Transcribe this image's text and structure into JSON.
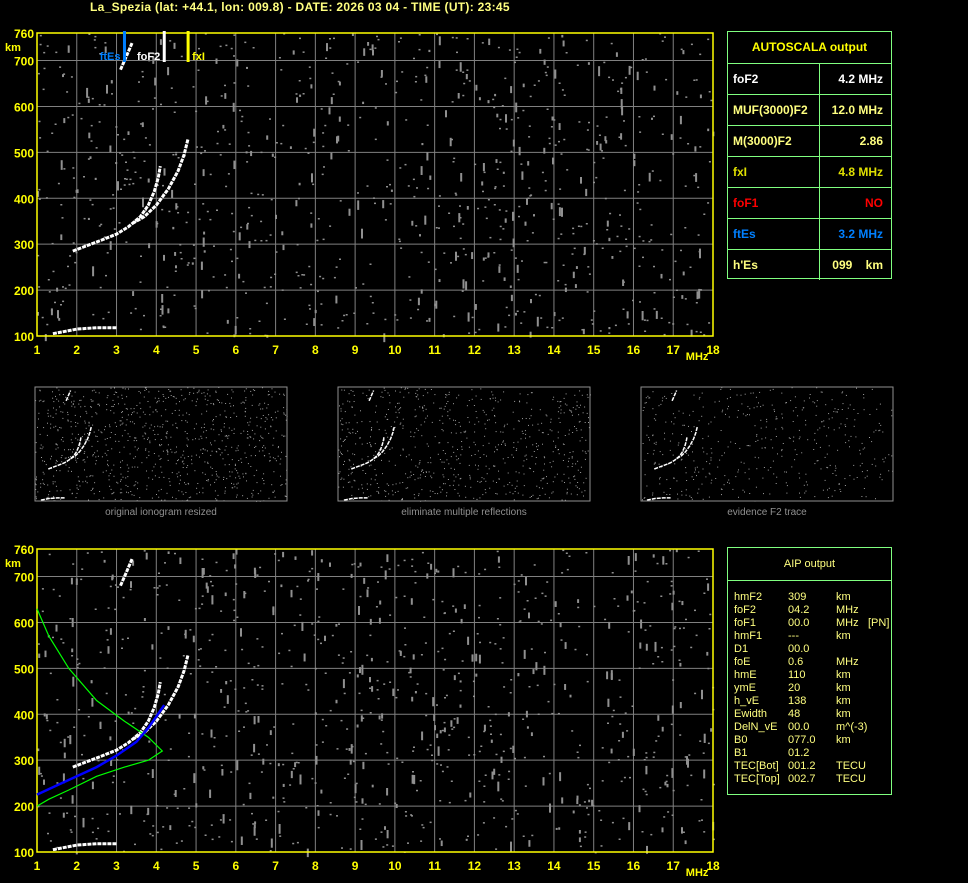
{
  "title": "La_Spezia (lat: +44.1, lon: 009.8) - DATE: 2026 03 04 - TIME (UT): 23:45",
  "colors": {
    "axis": "#ffff00",
    "grid": "#808080",
    "ftEs": "#0080ff",
    "fxI": "#ffff00",
    "foF1": "#ff0000",
    "panel_border": "#80ff80",
    "profile": "#00ff00",
    "true_height": "#0000ff"
  },
  "chart_data": [
    {
      "type": "scatter",
      "name": "ionogram",
      "xlabel": "MHz",
      "ylabel": "km",
      "xlim": [
        1,
        18
      ],
      "ylim": [
        100,
        760
      ],
      "xticks": [
        "1",
        "2",
        "3",
        "4",
        "5",
        "6",
        "7",
        "8",
        "9",
        "10",
        "11",
        "12",
        "13",
        "14",
        "15",
        "16",
        "17",
        "18"
      ],
      "yticks": [
        "100",
        "200",
        "300",
        "400",
        "500",
        "600",
        "700",
        "760"
      ],
      "grid": true,
      "markers": [
        {
          "label": "ftEs",
          "x": 3.2,
          "color": "#0080ff"
        },
        {
          "label": "foF2",
          "x": 4.2,
          "color": "#ffffff"
        },
        {
          "label": "fxI",
          "x": 4.8,
          "color": "#ffff00"
        }
      ],
      "o_trace": [
        [
          1.9,
          285
        ],
        [
          2.2,
          295
        ],
        [
          2.6,
          308
        ],
        [
          3.0,
          322
        ],
        [
          3.3,
          338
        ],
        [
          3.6,
          360
        ],
        [
          3.8,
          385
        ],
        [
          3.95,
          415
        ],
        [
          4.05,
          445
        ],
        [
          4.1,
          470
        ]
      ],
      "x_trace": [
        [
          3.4,
          345
        ],
        [
          3.7,
          360
        ],
        [
          4.0,
          385
        ],
        [
          4.3,
          420
        ],
        [
          4.55,
          460
        ],
        [
          4.7,
          495
        ],
        [
          4.8,
          530
        ]
      ],
      "second_hop": [
        [
          3.1,
          680
        ],
        [
          3.25,
          710
        ],
        [
          3.4,
          740
        ]
      ],
      "es_trace": [
        [
          1.4,
          105
        ],
        [
          2.0,
          115
        ],
        [
          2.5,
          118
        ],
        [
          3.0,
          118
        ]
      ]
    },
    {
      "type": "line",
      "name": "aip",
      "xlabel": "MHz",
      "ylabel": "km",
      "xlim": [
        1,
        18
      ],
      "ylim": [
        100,
        760
      ],
      "true_height": [
        [
          1.0,
          225
        ],
        [
          1.5,
          245
        ],
        [
          2.0,
          265
        ],
        [
          2.5,
          285
        ],
        [
          3.0,
          310
        ],
        [
          3.5,
          340
        ],
        [
          3.8,
          370
        ],
        [
          4.0,
          395
        ],
        [
          4.2,
          420
        ]
      ],
      "model_profile": [
        [
          1.0,
          630
        ],
        [
          1.3,
          570
        ],
        [
          1.8,
          500
        ],
        [
          2.5,
          430
        ],
        [
          3.2,
          385
        ],
        [
          3.8,
          350
        ],
        [
          4.15,
          320
        ],
        [
          3.8,
          300
        ],
        [
          3.2,
          285
        ],
        [
          2.5,
          265
        ],
        [
          1.8,
          235
        ],
        [
          1.3,
          215
        ],
        [
          1.0,
          200
        ]
      ]
    }
  ],
  "thumbnails": [
    {
      "caption": "original ionogram resized"
    },
    {
      "caption": "eliminate multiple reflections"
    },
    {
      "caption": "evidence F2 trace"
    }
  ],
  "autoscala": {
    "header": "AUTOSCALA output",
    "rows": [
      {
        "k": "foF2",
        "v": "4.2 MHz",
        "color": "#ffffff"
      },
      {
        "k": "MUF(3000)F2",
        "v": "12.0 MHz",
        "color": "#ffff80"
      },
      {
        "k": "M(3000)F2",
        "v": "2.86",
        "color": "#ffff80"
      },
      {
        "k": "fxI",
        "v": "4.8 MHz",
        "color": "#e0e000"
      },
      {
        "k": "foF1",
        "v": "NO",
        "color": "#ff0000"
      },
      {
        "k": "ftEs",
        "v": "3.2 MHz",
        "color": "#0080ff"
      },
      {
        "k": "h'Es",
        "v": "099    km",
        "color": "#ffff80"
      }
    ]
  },
  "aip": {
    "header": "AIP output",
    "rows": [
      [
        "hmF2",
        "309",
        "km",
        ""
      ],
      [
        "foF2",
        "04.2",
        "MHz",
        ""
      ],
      [
        "foF1",
        "00.0",
        "MHz",
        "[PN]"
      ],
      [
        "hmF1",
        "---",
        "km",
        ""
      ],
      [
        "D1",
        "00.0",
        "",
        ""
      ],
      [
        "foE",
        "0.6",
        "MHz",
        ""
      ],
      [
        "hmE",
        "110",
        "km",
        ""
      ],
      [
        "ymE",
        "20",
        "km",
        ""
      ],
      [
        "h_vE",
        "138",
        "km",
        ""
      ],
      [
        "Ewidth",
        "48",
        "km",
        ""
      ],
      [
        "DelN_vE",
        "00.0",
        "m^(-3)",
        ""
      ],
      [
        "B0",
        "077.0",
        "km",
        ""
      ],
      [
        "B1",
        "01.2",
        "",
        ""
      ],
      [
        "TEC[Bot]",
        "001.2",
        "TECU",
        ""
      ],
      [
        "TEC[Top]",
        "002.7",
        "TECU",
        ""
      ]
    ]
  }
}
